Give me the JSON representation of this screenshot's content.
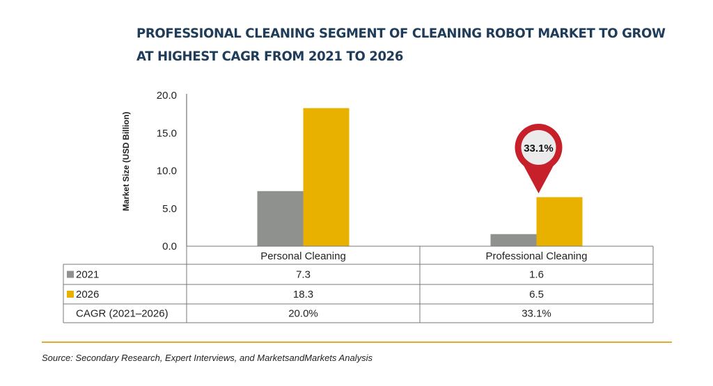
{
  "title_lines": [
    "PROFESSIONAL CLEANING SEGMENT OF CLEANING ROBOT MARKET TO GROW",
    "AT HIGHEST CAGR FROM 2021 TO 2026"
  ],
  "source": "Source: Secondary Research, Expert Interviews, and MarketsandMarkets Analysis",
  "colors": {
    "series_2021": "#8f918f",
    "series_2026": "#e8b100",
    "title": "#1f3c5b",
    "callout": "#c8202a",
    "rule": "#e5a82e"
  },
  "callout": {
    "text": "33.1%",
    "category": "Professional Cleaning"
  },
  "chart_data": {
    "type": "bar",
    "title": "PROFESSIONAL CLEANING SEGMENT OF CLEANING ROBOT MARKET TO GROW AT HIGHEST CAGR FROM 2021 TO 2026",
    "ylabel": "Market Size (USD Billion)",
    "xlabel": "",
    "ylim": [
      0,
      20
    ],
    "yticks": [
      "0.0",
      "5.0",
      "10.0",
      "15.0",
      "20.0"
    ],
    "categories": [
      "Personal Cleaning",
      "Professional Cleaning"
    ],
    "series": [
      {
        "name": "2021",
        "values": [
          7.3,
          1.6
        ],
        "labels": [
          "7.3",
          "1.6"
        ]
      },
      {
        "name": "2026",
        "values": [
          18.3,
          6.5
        ],
        "labels": [
          "18.3",
          "6.5"
        ]
      }
    ],
    "table_extra_row": {
      "name": "CAGR (2021–2026)",
      "labels": [
        "20.0%",
        "33.1%"
      ]
    },
    "legend": "data-table"
  }
}
